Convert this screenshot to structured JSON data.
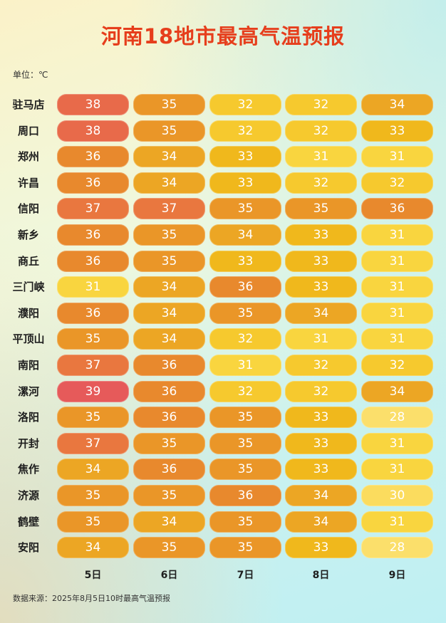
{
  "title": "河南18地市最高气温预报",
  "unit": "单位：℃",
  "source": "数据来源：2025年8月5日10时最高气温预报",
  "chart_data": {
    "type": "table",
    "title": "河南18地市最高气温预报",
    "columns": [
      "5日",
      "6日",
      "7日",
      "8日",
      "9日"
    ],
    "rows": [
      {
        "city": "驻马店",
        "values": [
          38,
          35,
          32,
          32,
          34
        ]
      },
      {
        "city": "周口",
        "values": [
          38,
          35,
          32,
          32,
          33
        ]
      },
      {
        "city": "郑州",
        "values": [
          36,
          34,
          33,
          31,
          31
        ]
      },
      {
        "city": "许昌",
        "values": [
          36,
          34,
          33,
          32,
          32
        ]
      },
      {
        "city": "信阳",
        "values": [
          37,
          37,
          35,
          35,
          36
        ]
      },
      {
        "city": "新乡",
        "values": [
          36,
          35,
          34,
          33,
          31
        ]
      },
      {
        "city": "商丘",
        "values": [
          36,
          35,
          33,
          33,
          31
        ]
      },
      {
        "city": "三门峡",
        "values": [
          31,
          34,
          36,
          33,
          31
        ]
      },
      {
        "city": "濮阳",
        "values": [
          36,
          34,
          35,
          34,
          31
        ]
      },
      {
        "city": "平顶山",
        "values": [
          35,
          34,
          32,
          31,
          31
        ]
      },
      {
        "city": "南阳",
        "values": [
          37,
          36,
          31,
          32,
          32
        ]
      },
      {
        "city": "漯河",
        "values": [
          39,
          36,
          32,
          32,
          34
        ]
      },
      {
        "city": "洛阳",
        "values": [
          35,
          36,
          35,
          33,
          28
        ]
      },
      {
        "city": "开封",
        "values": [
          37,
          35,
          35,
          33,
          31
        ]
      },
      {
        "city": "焦作",
        "values": [
          34,
          36,
          35,
          33,
          31
        ]
      },
      {
        "city": "济源",
        "values": [
          35,
          35,
          36,
          34,
          30
        ]
      },
      {
        "city": "鹤壁",
        "values": [
          35,
          34,
          35,
          34,
          31
        ]
      },
      {
        "city": "安阳",
        "values": [
          34,
          35,
          35,
          33,
          28
        ]
      }
    ],
    "color_scale": {
      "28": "#fbdf6b",
      "30": "#fbdc5e",
      "31": "#f9d53f",
      "32": "#f6c92e",
      "33": "#f0b81c",
      "34": "#eca624",
      "35": "#ea9628",
      "36": "#e8892d",
      "37": "#e9773f",
      "38": "#e86a4a",
      "39": "#e65a5a"
    }
  }
}
